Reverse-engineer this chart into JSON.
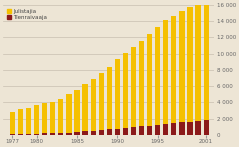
{
  "years": [
    1977,
    1978,
    1979,
    1980,
    1981,
    1982,
    1983,
    1984,
    1985,
    1986,
    1987,
    1988,
    1989,
    1990,
    1991,
    1992,
    1993,
    1994,
    1995,
    1996,
    1997,
    1998,
    1999,
    2000,
    2001
  ],
  "julistajia": [
    2700,
    3000,
    3200,
    3500,
    3700,
    3900,
    4200,
    4700,
    5200,
    5800,
    6400,
    7000,
    7700,
    8500,
    9200,
    9800,
    10500,
    11200,
    12000,
    12700,
    13200,
    13700,
    14100,
    14900,
    15600
  ],
  "tienraivaaja": [
    130,
    150,
    160,
    180,
    200,
    220,
    260,
    310,
    380,
    450,
    530,
    620,
    710,
    800,
    900,
    990,
    1080,
    1170,
    1280,
    1390,
    1480,
    1560,
    1640,
    1740,
    1840
  ],
  "julistajia_color": "#F5C000",
  "tienraivaaja_color": "#8B1A1A",
  "background_color": "#EDE5D5",
  "ylim": [
    0,
    16000
  ],
  "yticks": [
    0,
    2000,
    4000,
    6000,
    8000,
    10000,
    12000,
    14000,
    16000
  ],
  "ytick_labels": [
    "0",
    "2 000",
    "4 000",
    "6 000",
    "8 000",
    "10 000",
    "12 000",
    "14 000",
    "16 000"
  ],
  "xticks": [
    1977,
    1980,
    1985,
    1990,
    1995,
    2001
  ],
  "legend_julistajia": "Julistajia",
  "legend_tienraivaaja": "Tienraivaaja",
  "grid_color": "#C8BFB0"
}
